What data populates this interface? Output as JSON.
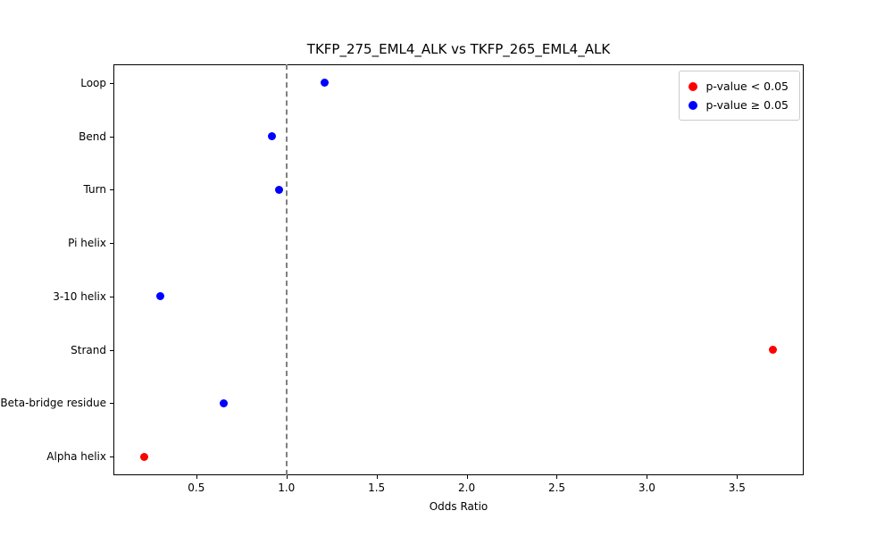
{
  "chart_data": {
    "type": "scatter",
    "title": "TKFP_275_EML4_ALK vs TKFP_265_EML4_ALK",
    "xlabel": "Odds Ratio",
    "ylabel": "",
    "categories": [
      "Loop",
      "Bend",
      "Turn",
      "Pi helix",
      "3-10 helix",
      "Strand",
      "Beta-bridge residue",
      "Alpha helix"
    ],
    "points": [
      {
        "category": "Loop",
        "odds_ratio": 1.21,
        "significant": false
      },
      {
        "category": "Bend",
        "odds_ratio": 0.92,
        "significant": false
      },
      {
        "category": "Turn",
        "odds_ratio": 0.96,
        "significant": false
      },
      {
        "category": "3-10 helix",
        "odds_ratio": 0.3,
        "significant": false
      },
      {
        "category": "Strand",
        "odds_ratio": 3.7,
        "significant": true
      },
      {
        "category": "Beta-bridge residue",
        "odds_ratio": 0.65,
        "significant": false
      },
      {
        "category": "Alpha helix",
        "odds_ratio": 0.21,
        "significant": true
      }
    ],
    "xticks": [
      0.5,
      1.0,
      1.5,
      2.0,
      2.5,
      3.0,
      3.5
    ],
    "xlim": [
      0.04,
      3.87
    ],
    "reference_line_x": 1.0,
    "grid": false,
    "legend_position": "upper right",
    "colors": {
      "significant": "#ff0000",
      "not_significant": "#0000ff",
      "reference_line": "#808080"
    },
    "legend": [
      {
        "label": "p-value < 0.05",
        "color": "#ff0000"
      },
      {
        "label": "p-value ≥ 0.05",
        "color": "#0000ff"
      }
    ]
  }
}
